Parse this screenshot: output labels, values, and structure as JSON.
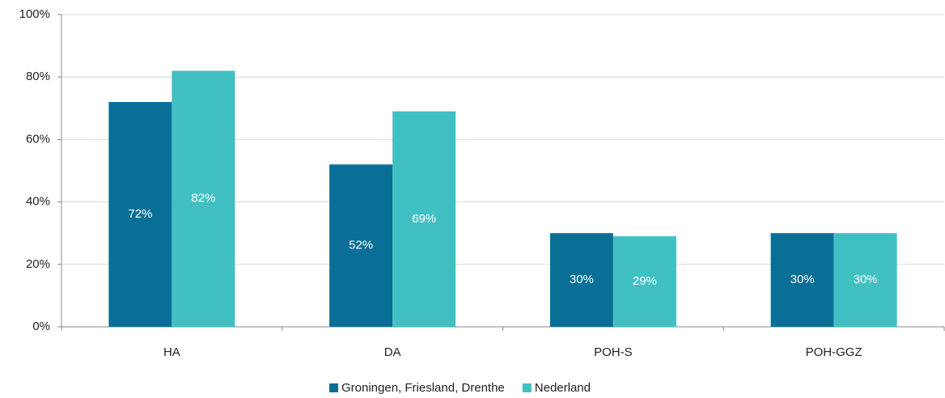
{
  "chart_data": {
    "type": "bar",
    "categories": [
      "HA",
      "DA",
      "POH-S",
      "POH-GGZ"
    ],
    "series": [
      {
        "name": "Groningen, Friesland, Drenthe",
        "color": "#0a6f96",
        "values": [
          72,
          52,
          30,
          30
        ],
        "value_labels": [
          "72%",
          "52%",
          "30%",
          "30%"
        ]
      },
      {
        "name": "Nederland",
        "color": "#41c0c4",
        "values": [
          82,
          69,
          29,
          30
        ],
        "value_labels": [
          "82%",
          "69%",
          "29%",
          "30%"
        ]
      }
    ],
    "ylim": [
      0,
      100
    ],
    "yticks": [
      {
        "value": 0,
        "label": "0%"
      },
      {
        "value": 20,
        "label": "20%"
      },
      {
        "value": 40,
        "label": "40%"
      },
      {
        "value": 60,
        "label": "60%"
      },
      {
        "value": 80,
        "label": "80%"
      },
      {
        "value": 100,
        "label": "100%"
      }
    ],
    "grid": true,
    "legend": "bottom"
  }
}
